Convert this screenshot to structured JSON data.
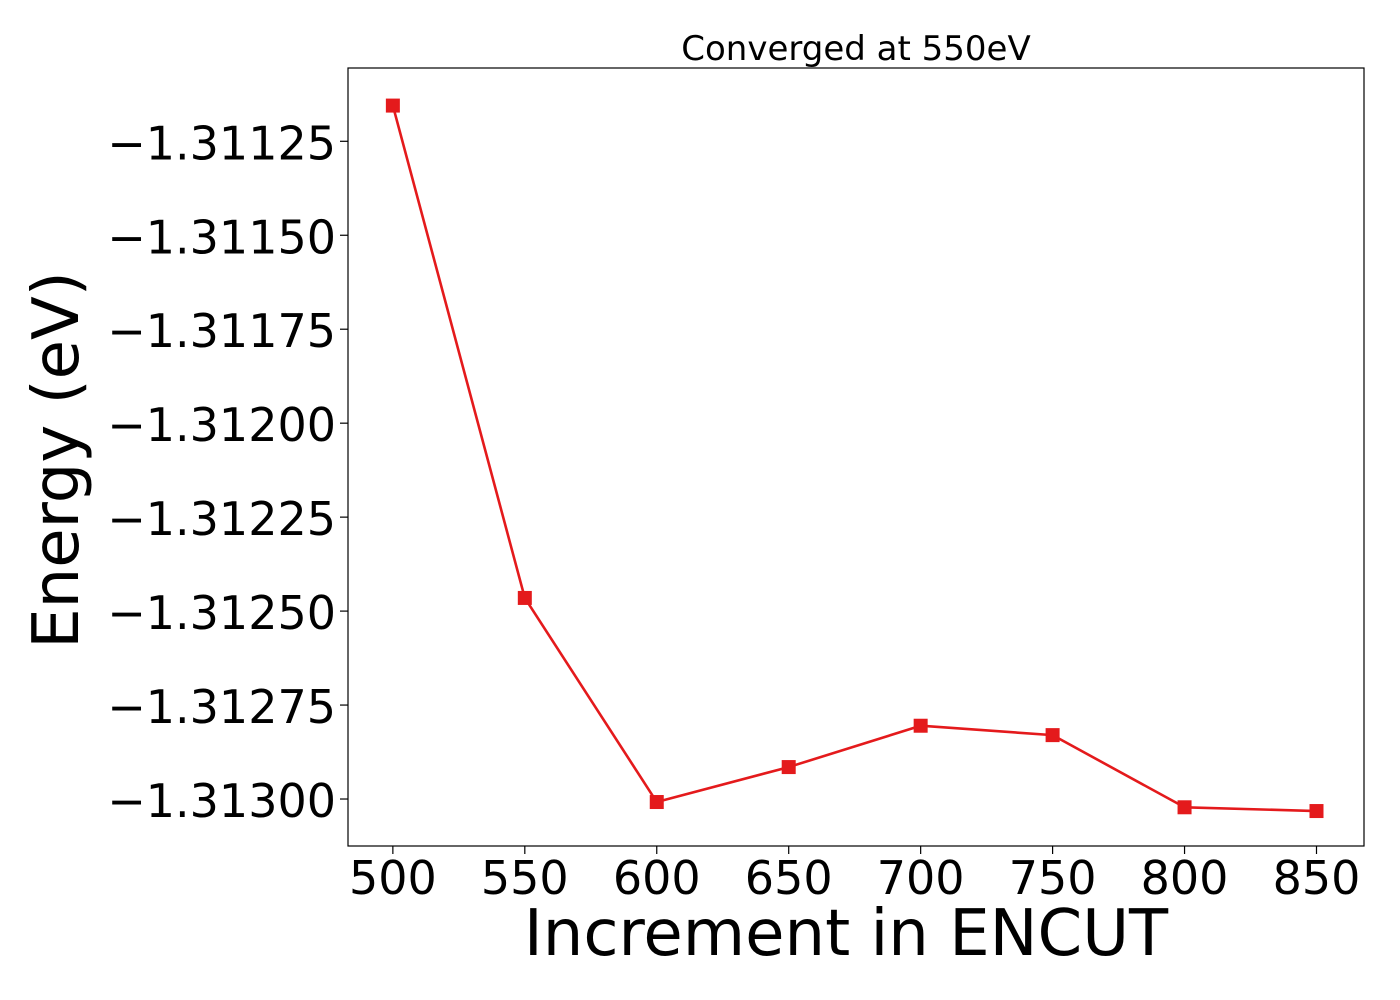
{
  "chart_data": {
    "type": "line",
    "title": "Converged at 550eV",
    "xlabel": "Increment in ENCUT",
    "ylabel": "Energy (eV)",
    "x": [
      500,
      550,
      600,
      650,
      700,
      750,
      800,
      850
    ],
    "xticks": [
      500,
      550,
      600,
      650,
      700,
      750,
      800,
      850
    ],
    "xlim": [
      483,
      868
    ],
    "yticks": [
      -1.31125,
      -1.3115,
      -1.31175,
      -1.312,
      -1.31225,
      -1.3125,
      -1.31275,
      -1.313
    ],
    "ytick_labels": [
      "−1.31125",
      "−1.31150",
      "−1.31175",
      "−1.31200",
      "−1.31225",
      "−1.31250",
      "−1.31275",
      "−1.31300"
    ],
    "ylim": [
      -1.313125,
      -1.311055
    ],
    "series": [
      {
        "values": [
          -1.311155,
          -1.312465,
          -1.313008,
          -1.312915,
          -1.312805,
          -1.31283,
          -1.313022,
          -1.313032
        ],
        "color": "#e41a1c",
        "marker": "square"
      }
    ],
    "grid": false,
    "legend": "none"
  }
}
